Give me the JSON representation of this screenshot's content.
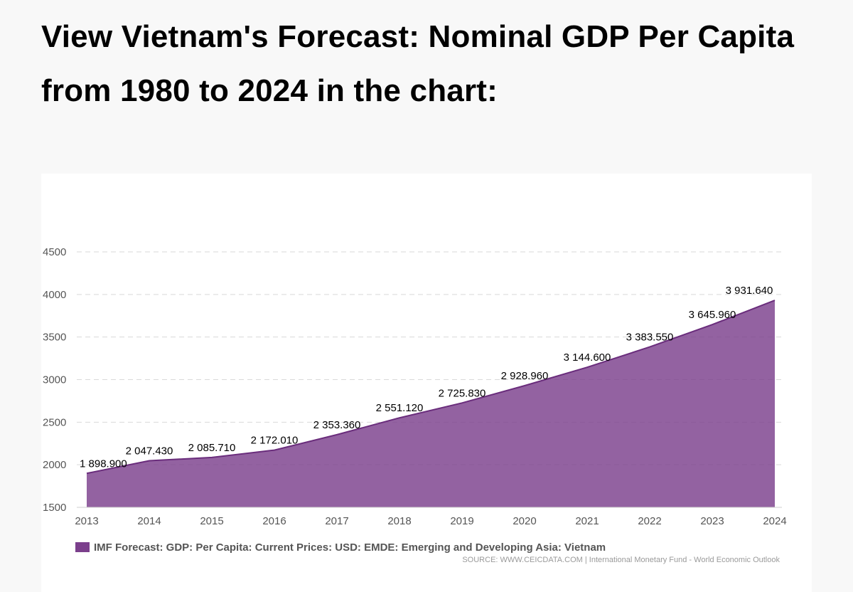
{
  "headline": "View Vietnam's Forecast: Nominal GDP Per Capita from 1980 to 2024 in the chart:",
  "chart_data": {
    "type": "area",
    "x": [
      "2013",
      "2014",
      "2015",
      "2016",
      "2017",
      "2018",
      "2019",
      "2020",
      "2021",
      "2022",
      "2023",
      "2024"
    ],
    "series": [
      {
        "name": "IMF Forecast: GDP: Per Capita: Current Prices: USD: EMDE: Emerging and Developing Asia: Vietnam",
        "values": [
          1898.9,
          2047.43,
          2085.71,
          2172.01,
          2353.36,
          2551.12,
          2725.83,
          2928.96,
          3144.6,
          3383.55,
          3645.96,
          3931.64
        ],
        "data_labels": [
          "1 898.900",
          "2 047.430",
          "2 085.710",
          "2 172.010",
          "2 353.360",
          "2 551.120",
          "2 725.830",
          "2 928.960",
          "3 144.600",
          "3 383.550",
          "3 645.960",
          "3 931.640"
        ],
        "color": "#7b3f8c"
      }
    ],
    "yticks": [
      1500,
      2000,
      2500,
      3000,
      3500,
      4000,
      4500
    ],
    "ylim": [
      1500,
      4500
    ],
    "grid": true,
    "legend_position": "bottom-left",
    "source": "SOURCE: WWW.CEICDATA.COM | International Monetary Fund - World Economic Outlook"
  }
}
